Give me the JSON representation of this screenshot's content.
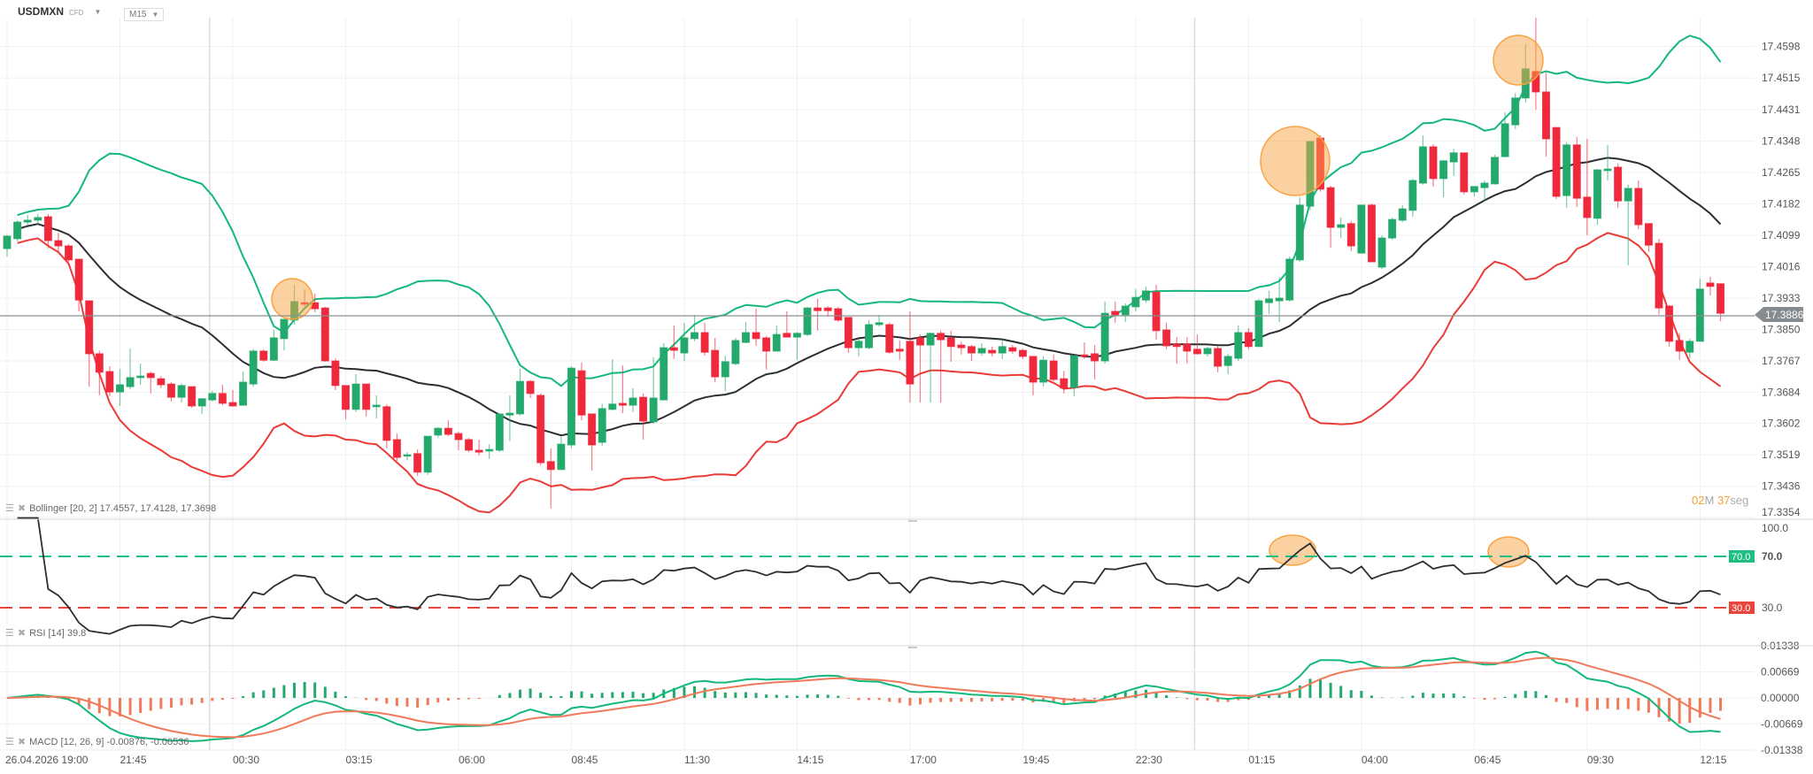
{
  "header": {
    "symbol": "USDMXN",
    "instrument_type": "CFD",
    "timeframe": "M15"
  },
  "colors": {
    "up": "#22a96b",
    "down": "#f0283c",
    "bb_upper": "#14b87b",
    "bb_middle": "#2b2f33",
    "bb_lower": "#ea3b37",
    "rsi_line": "#2b2f33",
    "rsi_70": "#1fbf84",
    "rsi_30": "#e8453c",
    "macd_line": "#14b87b",
    "signal_line": "#f07a5a",
    "highlight": "#f9a443",
    "last_price_tag": "#858b8f"
  },
  "indicators": {
    "bollinger": {
      "label": "Bollinger [20, 2] 17.4557, 17.4128, 17.3698",
      "period": 20,
      "stddev": 2
    },
    "rsi": {
      "label": "RSI [14] 39.8",
      "period": 14,
      "upper": 70,
      "lower": 30,
      "upper_badge": "70.0",
      "lower_badge": "30.0",
      "axis": [
        "100.0",
        "70.0",
        "30.0"
      ]
    },
    "macd": {
      "label": "MACD [12, 26, 9] -0.00876, -0.00536",
      "fast": 12,
      "slow": 26,
      "signal": 9,
      "axis": [
        "0.01338",
        "0.00669",
        "0.00000",
        "-0.00669",
        "-0.01338"
      ]
    }
  },
  "last_price": "17.3886",
  "countdown": {
    "minutes": "02",
    "minutes_unit": "M",
    "seconds": "37",
    "seconds_unit": "seg"
  },
  "chart_data": {
    "type": "candlestick",
    "interval": "M15",
    "price_ticks": [
      "17.4598",
      "17.4515",
      "17.4431",
      "17.4348",
      "17.4265",
      "17.4182",
      "17.4099",
      "17.4016",
      "17.3933",
      "17.3850",
      "17.3767",
      "17.3684",
      "17.3602",
      "17.3519",
      "17.3436",
      "17.3354"
    ],
    "time_labels": [
      "26.04.2026 19:00",
      "21:45",
      "00:30",
      "03:15",
      "06:00",
      "08:45",
      "11:30",
      "14:15",
      "17:00",
      "19:45",
      "22:30",
      "01:15",
      "04:00",
      "06:45",
      "09:30",
      "12:15"
    ],
    "candles_ohlc": [
      [
        17.4064,
        17.4101,
        17.4043,
        17.4097
      ],
      [
        17.409,
        17.4139,
        17.4083,
        17.4134
      ],
      [
        17.4134,
        17.4153,
        17.4125,
        17.4139
      ],
      [
        17.4139,
        17.4155,
        17.4127,
        17.4146
      ],
      [
        17.4148,
        17.4155,
        17.4064,
        17.4085
      ],
      [
        17.4085,
        17.4106,
        17.4057,
        17.4071
      ],
      [
        17.4071,
        17.4076,
        17.4029,
        17.4034
      ],
      [
        17.4036,
        17.4036,
        17.3898,
        17.3928
      ],
      [
        17.3926,
        17.3926,
        17.3699,
        17.3786
      ],
      [
        17.3786,
        17.3794,
        17.3676,
        17.3737
      ],
      [
        17.3739,
        17.3753,
        17.3674,
        17.3685
      ],
      [
        17.3685,
        17.3746,
        17.3648,
        17.3704
      ],
      [
        17.3699,
        17.38,
        17.3692,
        17.3723
      ],
      [
        17.3723,
        17.376,
        17.3704,
        17.3727
      ],
      [
        17.3734,
        17.3739,
        17.3681,
        17.3723
      ],
      [
        17.372,
        17.3727,
        17.3695,
        17.3704
      ],
      [
        17.3706,
        17.3711,
        17.366,
        17.3671
      ],
      [
        17.3671,
        17.3708,
        17.3657,
        17.3702
      ],
      [
        17.3699,
        17.3699,
        17.3643,
        17.3648
      ],
      [
        17.3648,
        17.3669,
        17.3627,
        17.3667
      ],
      [
        17.3664,
        17.3688,
        17.366,
        17.3681
      ],
      [
        17.3681,
        17.3704,
        17.365,
        17.3655
      ],
      [
        17.3657,
        17.369,
        17.3646,
        17.3648
      ],
      [
        17.365,
        17.3739,
        17.365,
        17.3711
      ],
      [
        17.3706,
        17.3798,
        17.3699,
        17.3793
      ],
      [
        17.3793,
        17.3798,
        17.3765,
        17.3769
      ],
      [
        17.3769,
        17.3849,
        17.3767,
        17.3828
      ],
      [
        17.3826,
        17.3877,
        17.3795,
        17.3877
      ],
      [
        17.3875,
        17.3968,
        17.3863,
        17.3924
      ],
      [
        17.3921,
        17.3956,
        17.391,
        17.3917
      ],
      [
        17.3921,
        17.3945,
        17.3896,
        17.3905
      ],
      [
        17.3907,
        17.391,
        17.3765,
        17.3767
      ],
      [
        17.3767,
        17.3774,
        17.369,
        17.3702
      ],
      [
        17.3702,
        17.3702,
        17.3613,
        17.3639
      ],
      [
        17.3639,
        17.3732,
        17.3632,
        17.3706
      ],
      [
        17.3706,
        17.3706,
        17.362,
        17.3639
      ],
      [
        17.3646,
        17.3676,
        17.3615,
        17.365
      ],
      [
        17.3646,
        17.3653,
        17.3536,
        17.3557
      ],
      [
        17.3559,
        17.3575,
        17.3503,
        17.3512
      ],
      [
        17.3517,
        17.3526,
        17.3505,
        17.3519
      ],
      [
        17.3522,
        17.3533,
        17.3463,
        17.3473
      ],
      [
        17.3473,
        17.3568,
        17.3466,
        17.3568
      ],
      [
        17.3571,
        17.3592,
        17.3564,
        17.3589
      ],
      [
        17.3589,
        17.361,
        17.3568,
        17.3573
      ],
      [
        17.3575,
        17.358,
        17.3531,
        17.3559
      ],
      [
        17.3559,
        17.3564,
        17.3526,
        17.3531
      ],
      [
        17.3531,
        17.3559,
        17.3517,
        17.3526
      ],
      [
        17.3529,
        17.3547,
        17.3508,
        17.3533
      ],
      [
        17.3531,
        17.3627,
        17.3526,
        17.3627
      ],
      [
        17.3624,
        17.3676,
        17.3555,
        17.3629
      ],
      [
        17.3627,
        17.3746,
        17.3622,
        17.3713
      ],
      [
        17.3713,
        17.3716,
        17.3669,
        17.3681
      ],
      [
        17.3676,
        17.3681,
        17.3491,
        17.3498
      ],
      [
        17.3501,
        17.3536,
        17.3377,
        17.348
      ],
      [
        17.348,
        17.3566,
        17.348,
        17.3547
      ],
      [
        17.3545,
        17.3753,
        17.3536,
        17.3748
      ],
      [
        17.3741,
        17.3763,
        17.361,
        17.3624
      ],
      [
        17.3627,
        17.3627,
        17.3477,
        17.3545
      ],
      [
        17.3552,
        17.3653,
        17.3543,
        17.3641
      ],
      [
        17.3639,
        17.3772,
        17.3636,
        17.3653
      ],
      [
        17.3655,
        17.3755,
        17.3629,
        17.365
      ],
      [
        17.365,
        17.3695,
        17.3632,
        17.3669
      ],
      [
        17.3671,
        17.3681,
        17.3559,
        17.3608
      ],
      [
        17.3606,
        17.3777,
        17.3601,
        17.3669
      ],
      [
        17.3664,
        17.3814,
        17.3664,
        17.3802
      ],
      [
        17.3802,
        17.3861,
        17.3772,
        17.3795
      ],
      [
        17.3788,
        17.3868,
        17.3767,
        17.3828
      ],
      [
        17.3826,
        17.3889,
        17.3819,
        17.3842
      ],
      [
        17.3842,
        17.3868,
        17.3781,
        17.379
      ],
      [
        17.3795,
        17.3828,
        17.3711,
        17.3725
      ],
      [
        17.3725,
        17.3781,
        17.3688,
        17.3765
      ],
      [
        17.376,
        17.3828,
        17.3755,
        17.3821
      ],
      [
        17.3816,
        17.387,
        17.3814,
        17.3842
      ],
      [
        17.3842,
        17.3905,
        17.3807,
        17.3826
      ],
      [
        17.3828,
        17.3833,
        17.3744,
        17.3793
      ],
      [
        17.3793,
        17.3861,
        17.3793,
        17.3837
      ],
      [
        17.384,
        17.3898,
        17.383,
        17.383
      ],
      [
        17.383,
        17.3844,
        17.377,
        17.384
      ],
      [
        17.3837,
        17.391,
        17.3833,
        17.3907
      ],
      [
        17.3907,
        17.3931,
        17.3847,
        17.39
      ],
      [
        17.3907,
        17.3912,
        17.3884,
        17.39
      ],
      [
        17.3905,
        17.391,
        17.387,
        17.3875
      ],
      [
        17.3882,
        17.3882,
        17.3788,
        17.3802
      ],
      [
        17.3802,
        17.3826,
        17.3779,
        17.3819
      ],
      [
        17.3802,
        17.3875,
        17.3798,
        17.3863
      ],
      [
        17.3863,
        17.3889,
        17.3858,
        17.3868
      ],
      [
        17.3863,
        17.3868,
        17.3786,
        17.379
      ],
      [
        17.3798,
        17.3821,
        17.377,
        17.3793
      ],
      [
        17.3819,
        17.3898,
        17.3657,
        17.3706
      ],
      [
        17.3828,
        17.3837,
        17.3657,
        17.3809
      ],
      [
        17.3809,
        17.3842,
        17.3657,
        17.384
      ],
      [
        17.384,
        17.3847,
        17.3657,
        17.3823
      ],
      [
        17.3828,
        17.3847,
        17.3765,
        17.3805
      ],
      [
        17.3809,
        17.3819,
        17.3784,
        17.3802
      ],
      [
        17.3805,
        17.3809,
        17.3767,
        17.3788
      ],
      [
        17.3788,
        17.3814,
        17.3781,
        17.38
      ],
      [
        17.3795,
        17.3805,
        17.3779,
        17.3788
      ],
      [
        17.3788,
        17.3826,
        17.3772,
        17.3805
      ],
      [
        17.3802,
        17.3809,
        17.3786,
        17.3793
      ],
      [
        17.3795,
        17.38,
        17.3772,
        17.3779
      ],
      [
        17.3779,
        17.3779,
        17.3676,
        17.3711
      ],
      [
        17.3711,
        17.3779,
        17.3699,
        17.3769
      ],
      [
        17.3767,
        17.3784,
        17.3713,
        17.3718
      ],
      [
        17.372,
        17.3741,
        17.3681,
        17.3695
      ],
      [
        17.3697,
        17.3781,
        17.3674,
        17.3781
      ],
      [
        17.3783,
        17.3816,
        17.3772,
        17.3779
      ],
      [
        17.3786,
        17.3809,
        17.3718,
        17.3767
      ],
      [
        17.3767,
        17.3924,
        17.376,
        17.3893
      ],
      [
        17.3898,
        17.3924,
        17.3868,
        17.3889
      ],
      [
        17.3889,
        17.3919,
        17.387,
        17.3912
      ],
      [
        17.391,
        17.3957,
        17.3898,
        17.3935
      ],
      [
        17.3928,
        17.3964,
        17.3921,
        17.3952
      ],
      [
        17.3949,
        17.3968,
        17.3823,
        17.3847
      ],
      [
        17.3849,
        17.3868,
        17.3798,
        17.3807
      ],
      [
        17.3812,
        17.383,
        17.376,
        17.3805
      ],
      [
        17.3812,
        17.383,
        17.376,
        17.3793
      ],
      [
        17.3798,
        17.3837,
        17.3784,
        17.3786
      ],
      [
        17.3786,
        17.3805,
        17.3779,
        17.38
      ],
      [
        17.38,
        17.3807,
        17.3737,
        17.3753
      ],
      [
        17.3755,
        17.3786,
        17.3732,
        17.3779
      ],
      [
        17.3774,
        17.3861,
        17.3767,
        17.3842
      ],
      [
        17.3842,
        17.3854,
        17.3798,
        17.3805
      ],
      [
        17.3805,
        17.3931,
        17.3805,
        17.3926
      ],
      [
        17.3921,
        17.3952,
        17.3891,
        17.3931
      ],
      [
        17.3926,
        17.3989,
        17.387,
        17.3933
      ],
      [
        17.3928,
        17.4043,
        17.3924,
        17.4036
      ],
      [
        17.4034,
        17.42,
        17.4029,
        17.4179
      ],
      [
        17.4176,
        17.4347,
        17.4165,
        17.4347
      ],
      [
        17.4356,
        17.4363,
        17.4214,
        17.4221
      ],
      [
        17.4225,
        17.423,
        17.4066,
        17.412
      ],
      [
        17.412,
        17.4146,
        17.4092,
        17.4127
      ],
      [
        17.413,
        17.4137,
        17.4057,
        17.4071
      ],
      [
        17.4052,
        17.4179,
        17.4052,
        17.4179
      ],
      [
        17.4179,
        17.4183,
        17.4029,
        17.4029
      ],
      [
        17.4015,
        17.4099,
        17.401,
        17.4092
      ],
      [
        17.4092,
        17.4146,
        17.4087,
        17.4141
      ],
      [
        17.4139,
        17.4179,
        17.4134,
        17.4169
      ],
      [
        17.4165,
        17.4249,
        17.4148,
        17.4244
      ],
      [
        17.4237,
        17.4363,
        17.4233,
        17.4333
      ],
      [
        17.4333,
        17.434,
        17.4228,
        17.4249
      ],
      [
        17.4249,
        17.4296,
        17.42,
        17.4296
      ],
      [
        17.4293,
        17.4328,
        17.4256,
        17.4317
      ],
      [
        17.4317,
        17.4317,
        17.4207,
        17.4214
      ],
      [
        17.4214,
        17.4228,
        17.4202,
        17.4228
      ],
      [
        17.4225,
        17.4244,
        17.419,
        17.4237
      ],
      [
        17.4235,
        17.4312,
        17.4233,
        17.4305
      ],
      [
        17.4307,
        17.4424,
        17.4305,
        17.4394
      ],
      [
        17.4391,
        17.4475,
        17.438,
        17.4462
      ],
      [
        17.4462,
        17.4604,
        17.445,
        17.4539
      ],
      [
        17.4532,
        17.4674,
        17.4431,
        17.4478
      ],
      [
        17.4478,
        17.4529,
        17.4307,
        17.4354
      ],
      [
        17.4384,
        17.4384,
        17.4195,
        17.4202
      ],
      [
        17.4204,
        17.4345,
        17.4172,
        17.4338
      ],
      [
        17.4338,
        17.4359,
        17.4174,
        17.4197
      ],
      [
        17.42,
        17.4354,
        17.4099,
        17.4146
      ],
      [
        17.4144,
        17.4275,
        17.4127,
        17.4272
      ],
      [
        17.427,
        17.4338,
        17.4244,
        17.4274
      ],
      [
        17.4279,
        17.4289,
        17.4172,
        17.419
      ],
      [
        17.419,
        17.4233,
        17.402,
        17.4223
      ],
      [
        17.4223,
        17.4244,
        17.4115,
        17.4127
      ],
      [
        17.413,
        17.413,
        17.4055,
        17.4073
      ],
      [
        17.4078,
        17.409,
        17.389,
        17.3907
      ],
      [
        17.3912,
        17.3915,
        17.3805,
        17.3819
      ],
      [
        17.3821,
        17.384,
        17.377,
        17.3793
      ],
      [
        17.379,
        17.3826,
        17.3774,
        17.3819
      ],
      [
        17.3819,
        17.3985,
        17.3819,
        17.3957
      ],
      [
        17.3973,
        17.399,
        17.394,
        17.3964
      ],
      [
        17.3971,
        17.3971,
        17.3872,
        17.3893
      ]
    ]
  }
}
